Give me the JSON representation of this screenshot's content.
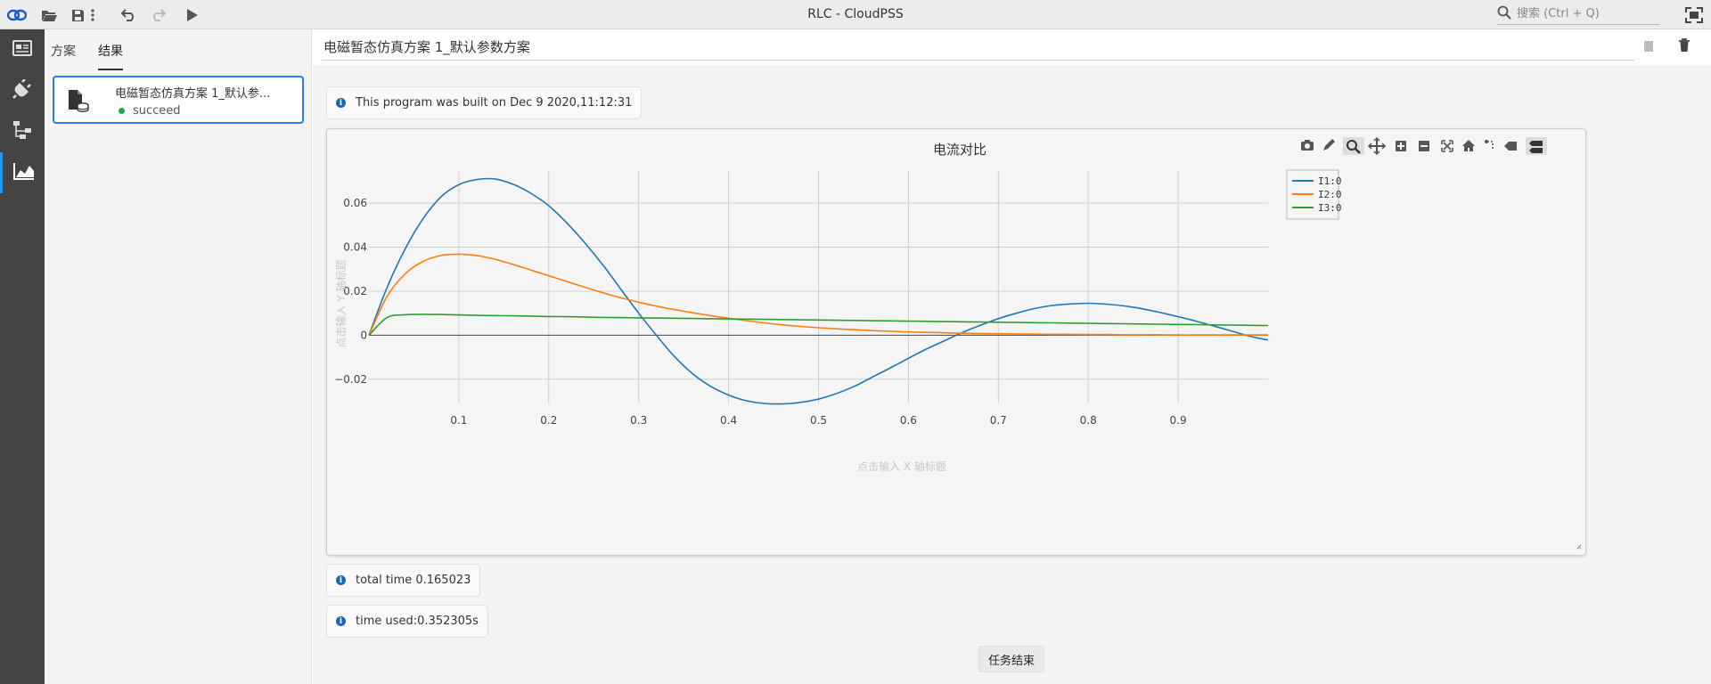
{
  "app": {
    "title": "RLC - CloudPSS"
  },
  "toolbar": {
    "items": [
      "link-icon",
      "folder-open-icon",
      "save-icon",
      "more-icon",
      "undo-icon",
      "redo-icon",
      "run-icon"
    ],
    "search_placeholder": "搜索 (Ctrl + Q)"
  },
  "rail": {
    "items": [
      "overview",
      "component",
      "topology",
      "results"
    ],
    "active": "results"
  },
  "panel": {
    "tabs": [
      "方案",
      "结果"
    ],
    "active_tab": "结果",
    "run": {
      "title": "电磁暂态仿真方案 1_默认参...",
      "status": "succeed",
      "status_color": "#27a35a"
    }
  },
  "main": {
    "title": "电磁暂态仿真方案 1_默认参数方案",
    "messages": {
      "build": "This program was built on Dec 9 2020,11:12:31",
      "total": "total time 0.165023",
      "used": "time used:0.352305s"
    },
    "end_label": "任务结束"
  },
  "chart_data": {
    "type": "line",
    "title": "电流对比",
    "xlabel": "点击输入 X 轴标题",
    "ylabel": "点击输入 Y 轴标题",
    "xlim": [
      0,
      1.0
    ],
    "ylim": [
      -0.031,
      0.075
    ],
    "xticks": [
      0.1,
      0.2,
      0.3,
      0.4,
      0.5,
      0.6,
      0.7,
      0.8,
      0.9
    ],
    "xtick_labels": [
      "0.1",
      "0.2",
      "0.3",
      "0.4",
      "0.5",
      "0.6",
      "0.7",
      "0.8",
      "0.9"
    ],
    "yticks": [
      -0.02,
      0,
      0.02,
      0.04,
      0.06
    ],
    "ytick_labels": [
      "−0.02",
      "0",
      "0.02",
      "0.04",
      "0.06"
    ],
    "grid": true,
    "legend_position": "top-right",
    "x": [
      0,
      0.02,
      0.04,
      0.06,
      0.08,
      0.1,
      0.12,
      0.14,
      0.16,
      0.18,
      0.2,
      0.22,
      0.24,
      0.26,
      0.28,
      0.3,
      0.32,
      0.34,
      0.36,
      0.38,
      0.4,
      0.42,
      0.44,
      0.46,
      0.48,
      0.5,
      0.52,
      0.54,
      0.56,
      0.58,
      0.6,
      0.62,
      0.64,
      0.66,
      0.68,
      0.7,
      0.72,
      0.74,
      0.76,
      0.78,
      0.8,
      0.82,
      0.84,
      0.86,
      0.88,
      0.9,
      0.92,
      0.94,
      0.96,
      0.98,
      1.0
    ],
    "series": [
      {
        "name": "I1:0",
        "color": "#1f77b4",
        "values": [
          0,
          0.0215,
          0.039,
          0.0528,
          0.0628,
          0.0684,
          0.0707,
          0.071,
          0.0686,
          0.0645,
          0.0588,
          0.051,
          0.042,
          0.032,
          0.021,
          0.01,
          -0.0002,
          -0.0098,
          -0.0175,
          -0.0232,
          -0.0272,
          -0.0298,
          -0.031,
          -0.0312,
          -0.0305,
          -0.029,
          -0.0265,
          -0.0232,
          -0.019,
          -0.0148,
          -0.0105,
          -0.0063,
          -0.0025,
          0.0012,
          0.0045,
          0.0075,
          0.01,
          0.0121,
          0.0135,
          0.0142,
          0.0145,
          0.0141,
          0.0133,
          0.012,
          0.0103,
          0.0084,
          0.0064,
          0.0041,
          0.0018,
          -0.0005,
          -0.0022
        ]
      },
      {
        "name": "I2:0",
        "color": "#ff7f0e",
        "values": [
          0,
          0.0175,
          0.0278,
          0.0335,
          0.0362,
          0.0368,
          0.0362,
          0.0345,
          0.0322,
          0.0296,
          0.027,
          0.0244,
          0.0218,
          0.0193,
          0.017,
          0.015,
          0.0132,
          0.0116,
          0.0102,
          0.0089,
          0.0077,
          0.0066,
          0.0056,
          0.0047,
          0.004,
          0.0034,
          0.0029,
          0.0025,
          0.0021,
          0.0018,
          0.0015,
          0.0013,
          0.0011,
          0.0009,
          0.0008,
          0.0007,
          0.0006,
          0.0005,
          0.0004,
          0.0004,
          0.0003,
          0.0003,
          0.0002,
          0.0002,
          0.0002,
          0.0001,
          0.0001,
          0.0001,
          0.0001,
          0.0001,
          0.0001
        ]
      },
      {
        "name": "I3:0",
        "color": "#2ca02c",
        "values": [
          0,
          0.008,
          0.0093,
          0.0095,
          0.0094,
          0.0092,
          0.009,
          0.0089,
          0.0088,
          0.0087,
          0.0085,
          0.0084,
          0.0083,
          0.0081,
          0.008,
          0.0079,
          0.0078,
          0.0077,
          0.0076,
          0.0075,
          0.0074,
          0.0073,
          0.0072,
          0.0071,
          0.007,
          0.0069,
          0.0068,
          0.0067,
          0.0066,
          0.0065,
          0.0064,
          0.0063,
          0.0062,
          0.0061,
          0.006,
          0.0059,
          0.0058,
          0.0057,
          0.0056,
          0.0055,
          0.0054,
          0.0053,
          0.0052,
          0.0051,
          0.005,
          0.0049,
          0.0048,
          0.0047,
          0.0046,
          0.0045,
          0.0044
        ]
      }
    ]
  }
}
